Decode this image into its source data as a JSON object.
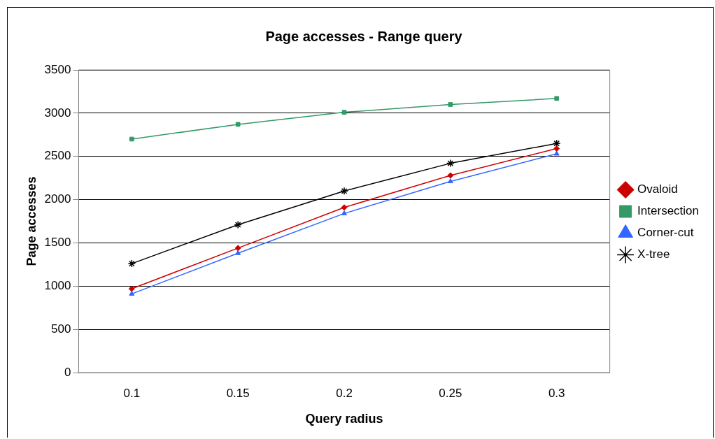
{
  "chart_data": {
    "type": "line",
    "title": "Page accesses - Range query",
    "xlabel": "Query radius",
    "ylabel": "Page accesses",
    "categories": [
      "0.1",
      "0.15",
      "0.2",
      "0.25",
      "0.3"
    ],
    "series": [
      {
        "name": "Ovaloid",
        "color": "#cc0000",
        "marker": "diamond",
        "values": [
          970,
          1440,
          1910,
          2280,
          2590
        ]
      },
      {
        "name": "Intersection",
        "color": "#339966",
        "marker": "square",
        "values": [
          2700,
          2870,
          3010,
          3100,
          3170
        ]
      },
      {
        "name": "Corner-cut",
        "color": "#3366ff",
        "marker": "triangle",
        "values": [
          910,
          1380,
          1840,
          2210,
          2530
        ]
      },
      {
        "name": "X-tree",
        "color": "#000000",
        "marker": "cross",
        "values": [
          1260,
          1710,
          2100,
          2420,
          2650
        ]
      }
    ],
    "ylim": [
      0,
      3500
    ],
    "yticks": [
      0,
      500,
      1000,
      1500,
      2000,
      2500,
      3000,
      3500
    ],
    "grid": "y",
    "legend": "right",
    "line_style": "solid"
  }
}
